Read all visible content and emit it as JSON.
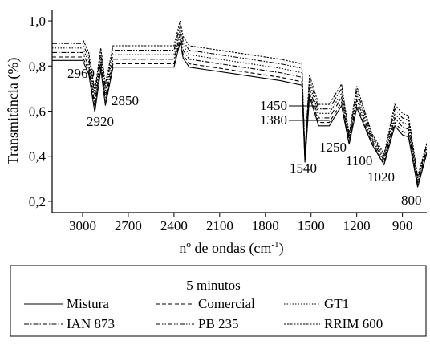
{
  "chart_data": {
    "type": "line",
    "title": "",
    "xlabel": "nº de ondas (cm",
    "xlabel_sup": "-1",
    "xlabel_close": ")",
    "ylabel": "Transmitância (%)",
    "xlim": [
      3200,
      740
    ],
    "ylim": [
      0.15,
      1.05
    ],
    "x_reversed": true,
    "x_ticks": [
      3000,
      2700,
      2400,
      2100,
      1800,
      1500,
      1200,
      900
    ],
    "x_tick_labels": [
      "3000",
      "2700",
      "2400",
      "2100",
      "1800",
      "1500",
      "1200",
      "900"
    ],
    "y_ticks": [
      0.2,
      0.4,
      0.6,
      0.8,
      1.0
    ],
    "y_tick_labels": [
      "0,2",
      "0,4",
      "0,6",
      "0,8",
      "1,0"
    ],
    "grid": false,
    "legend": {
      "title": "5 minutos",
      "position": "bottom",
      "entries": [
        "Mistura",
        "Comercial",
        "GT1",
        "IAN 873",
        "PB 235",
        "RRIM 600"
      ]
    },
    "annotations": [
      {
        "text": "2960",
        "x": 2960
      },
      {
        "text": "2920",
        "x": 2920
      },
      {
        "text": "2850",
        "x": 2850
      },
      {
        "text": "1450",
        "x": 1450
      },
      {
        "text": "1380",
        "x": 1380
      },
      {
        "text": "1250",
        "x": 1250
      },
      {
        "text": "1540",
        "x": 1540
      },
      {
        "text": "1100",
        "x": 1100
      },
      {
        "text": "1020",
        "x": 1020
      },
      {
        "text": "800",
        "x": 800
      }
    ],
    "series": [
      {
        "name": "Mistura",
        "dash": "solid",
        "offset": -0.035,
        "x": [
          3200,
          3000,
          2960,
          2920,
          2880,
          2850,
          2800,
          2400,
          2360,
          2340,
          2300,
          2000,
          1700,
          1560,
          1540,
          1510,
          1450,
          1380,
          1300,
          1250,
          1200,
          1100,
          1020,
          950,
          900,
          860,
          800,
          740
        ],
        "y": [
          0.86,
          0.86,
          0.8,
          0.63,
          0.82,
          0.66,
          0.83,
          0.83,
          0.94,
          0.87,
          0.83,
          0.8,
          0.77,
          0.75,
          0.39,
          0.7,
          0.57,
          0.57,
          0.66,
          0.47,
          0.65,
          0.47,
          0.38,
          0.57,
          0.53,
          0.52,
          0.28,
          0.43
        ]
      },
      {
        "name": "Comercial",
        "dash": "dashed",
        "offset": -0.02,
        "x": [
          3200,
          3000,
          2960,
          2920,
          2880,
          2850,
          2800,
          2400,
          2360,
          2340,
          2300,
          2000,
          1700,
          1560,
          1540,
          1510,
          1450,
          1380,
          1300,
          1250,
          1200,
          1100,
          1020,
          950,
          900,
          860,
          800,
          740
        ],
        "y": [
          0.86,
          0.86,
          0.8,
          0.63,
          0.82,
          0.66,
          0.83,
          0.83,
          0.94,
          0.87,
          0.83,
          0.8,
          0.77,
          0.75,
          0.39,
          0.7,
          0.57,
          0.57,
          0.66,
          0.47,
          0.65,
          0.47,
          0.38,
          0.57,
          0.53,
          0.52,
          0.28,
          0.43
        ]
      },
      {
        "name": "GT1",
        "dash": "dotted",
        "offset": 0.02,
        "x": [
          3200,
          3000,
          2960,
          2920,
          2880,
          2850,
          2800,
          2400,
          2360,
          2340,
          2300,
          2000,
          1700,
          1560,
          1540,
          1510,
          1450,
          1380,
          1300,
          1250,
          1200,
          1100,
          1020,
          950,
          900,
          860,
          800,
          740
        ],
        "y": [
          0.86,
          0.86,
          0.8,
          0.63,
          0.82,
          0.66,
          0.83,
          0.83,
          0.94,
          0.87,
          0.83,
          0.8,
          0.77,
          0.75,
          0.39,
          0.7,
          0.57,
          0.57,
          0.66,
          0.47,
          0.65,
          0.47,
          0.38,
          0.57,
          0.53,
          0.52,
          0.28,
          0.43
        ]
      },
      {
        "name": "IAN 873",
        "dash": "dashdot",
        "offset": 0.0,
        "x": [
          3200,
          3000,
          2960,
          2920,
          2880,
          2850,
          2800,
          2400,
          2360,
          2340,
          2300,
          2000,
          1700,
          1560,
          1540,
          1510,
          1450,
          1380,
          1300,
          1250,
          1200,
          1100,
          1020,
          950,
          900,
          860,
          800,
          740
        ],
        "y": [
          0.86,
          0.86,
          0.8,
          0.63,
          0.82,
          0.66,
          0.83,
          0.83,
          0.94,
          0.87,
          0.83,
          0.8,
          0.77,
          0.75,
          0.39,
          0.7,
          0.57,
          0.57,
          0.66,
          0.47,
          0.65,
          0.47,
          0.38,
          0.57,
          0.53,
          0.52,
          0.28,
          0.43
        ]
      },
      {
        "name": "PB 235",
        "dash": "dashdotdot",
        "offset": 0.04,
        "x": [
          3200,
          3000,
          2960,
          2920,
          2880,
          2850,
          2800,
          2400,
          2360,
          2340,
          2300,
          2000,
          1700,
          1560,
          1540,
          1510,
          1450,
          1380,
          1300,
          1250,
          1200,
          1100,
          1020,
          950,
          900,
          860,
          800,
          740
        ],
        "y": [
          0.86,
          0.86,
          0.8,
          0.63,
          0.82,
          0.66,
          0.83,
          0.83,
          0.94,
          0.87,
          0.83,
          0.8,
          0.77,
          0.75,
          0.39,
          0.7,
          0.57,
          0.57,
          0.66,
          0.47,
          0.65,
          0.47,
          0.38,
          0.57,
          0.53,
          0.52,
          0.28,
          0.43
        ]
      },
      {
        "name": "RRIM 600",
        "dash": "finedash",
        "offset": 0.06,
        "x": [
          3200,
          3000,
          2960,
          2920,
          2880,
          2850,
          2800,
          2400,
          2360,
          2340,
          2300,
          2000,
          1700,
          1560,
          1540,
          1510,
          1450,
          1380,
          1300,
          1250,
          1200,
          1100,
          1020,
          950,
          900,
          860,
          800,
          740
        ],
        "y": [
          0.86,
          0.86,
          0.8,
          0.63,
          0.82,
          0.66,
          0.83,
          0.83,
          0.94,
          0.87,
          0.83,
          0.8,
          0.77,
          0.75,
          0.39,
          0.7,
          0.57,
          0.57,
          0.66,
          0.47,
          0.65,
          0.47,
          0.38,
          0.57,
          0.53,
          0.52,
          0.28,
          0.43
        ]
      }
    ]
  }
}
